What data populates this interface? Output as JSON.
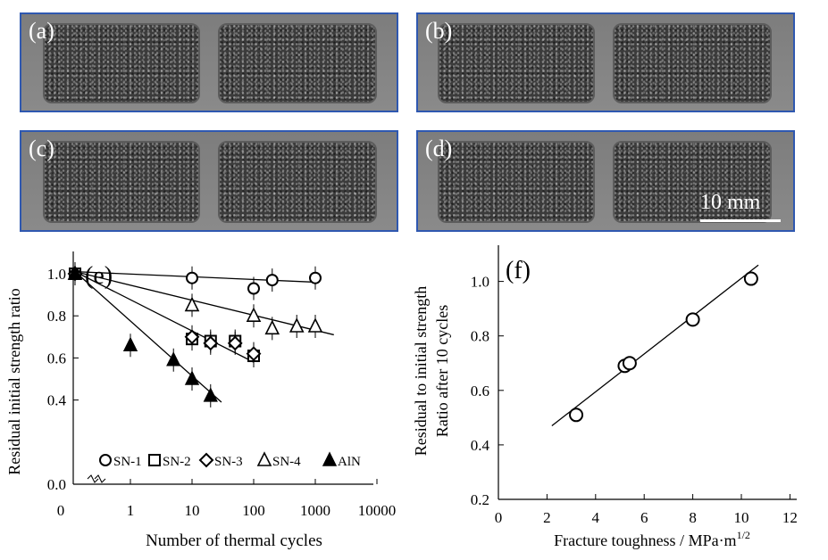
{
  "photos": {
    "panels": [
      {
        "label": "(a)"
      },
      {
        "label": "(b)"
      },
      {
        "label": "(c)"
      },
      {
        "label": "(d)"
      }
    ],
    "scale_bar_label": "10 mm"
  },
  "chart_data": [
    {
      "type": "scatter",
      "panel_label": "(e)",
      "xlabel": "Number of thermal cycles",
      "ylabel": "Residual initial strength ratio",
      "x_scale": "log",
      "x_ticks": [
        "0",
        "1",
        "10",
        "100",
        "1000",
        "10000"
      ],
      "y_ticks": [
        "0.0",
        "0.4",
        "0.6",
        "0.8",
        "1.0"
      ],
      "ylim": [
        0,
        1.1
      ],
      "axis_break": true,
      "legend": [
        "SN-1",
        "SN-2",
        "SN-3",
        "SN-4",
        "AlN"
      ],
      "series": [
        {
          "name": "SN-1",
          "marker": "circle-open",
          "points": [
            {
              "x": 0,
              "y": 1.0
            },
            {
              "x": 10,
              "y": 0.98
            },
            {
              "x": 100,
              "y": 0.93
            },
            {
              "x": 200,
              "y": 0.97
            },
            {
              "x": 1000,
              "y": 0.98
            }
          ],
          "fit": [
            {
              "x": 0,
              "y": 1.01
            },
            {
              "x": 1000,
              "y": 0.96
            }
          ]
        },
        {
          "name": "SN-2",
          "marker": "square-open",
          "points": [
            {
              "x": 0,
              "y": 1.0
            },
            {
              "x": 10,
              "y": 0.69
            },
            {
              "x": 20,
              "y": 0.68
            },
            {
              "x": 50,
              "y": 0.68
            },
            {
              "x": 100,
              "y": 0.61
            }
          ],
          "fit": [
            {
              "x": 0,
              "y": 1.01
            },
            {
              "x": 100,
              "y": 0.58
            }
          ]
        },
        {
          "name": "SN-3",
          "marker": "diamond-open",
          "points": [
            {
              "x": 0,
              "y": 1.0
            },
            {
              "x": 10,
              "y": 0.7
            },
            {
              "x": 20,
              "y": 0.67
            },
            {
              "x": 50,
              "y": 0.67
            },
            {
              "x": 100,
              "y": 0.62
            }
          ],
          "fit": null
        },
        {
          "name": "SN-4",
          "marker": "triangle-open",
          "points": [
            {
              "x": 0,
              "y": 1.0
            },
            {
              "x": 10,
              "y": 0.85
            },
            {
              "x": 100,
              "y": 0.8
            },
            {
              "x": 200,
              "y": 0.74
            },
            {
              "x": 500,
              "y": 0.75
            },
            {
              "x": 1000,
              "y": 0.75
            }
          ],
          "fit": [
            {
              "x": 0,
              "y": 1.01
            },
            {
              "x": 2000,
              "y": 0.71
            }
          ]
        },
        {
          "name": "AlN",
          "marker": "triangle-filled",
          "points": [
            {
              "x": 0,
              "y": 1.0
            },
            {
              "x": 1,
              "y": 0.66
            },
            {
              "x": 5,
              "y": 0.59
            },
            {
              "x": 10,
              "y": 0.5
            },
            {
              "x": 20,
              "y": 0.42
            }
          ],
          "fit": [
            {
              "x": 0,
              "y": 1.01
            },
            {
              "x": 30,
              "y": 0.39
            }
          ]
        }
      ]
    },
    {
      "type": "scatter",
      "panel_label": "(f)",
      "xlabel": "Fracture toughness / MPa·m",
      "xlabel_sup": "1/2",
      "ylabel_line1": "Residual to initial strength",
      "ylabel_line2": "Ratio after 10 cycles",
      "x_ticks": [
        "0",
        "2",
        "4",
        "6",
        "8",
        "10",
        "12"
      ],
      "y_ticks": [
        "0.2",
        "0.4",
        "0.6",
        "0.8",
        "1.0"
      ],
      "xlim": [
        0,
        12
      ],
      "ylim": [
        0.2,
        1.1
      ],
      "points": [
        {
          "x": 3.2,
          "y": 0.51
        },
        {
          "x": 5.2,
          "y": 0.69
        },
        {
          "x": 5.4,
          "y": 0.7
        },
        {
          "x": 8.0,
          "y": 0.86
        },
        {
          "x": 10.4,
          "y": 1.01
        }
      ],
      "fit": [
        {
          "x": 2.2,
          "y": 0.47
        },
        {
          "x": 10.7,
          "y": 1.06
        }
      ]
    }
  ]
}
